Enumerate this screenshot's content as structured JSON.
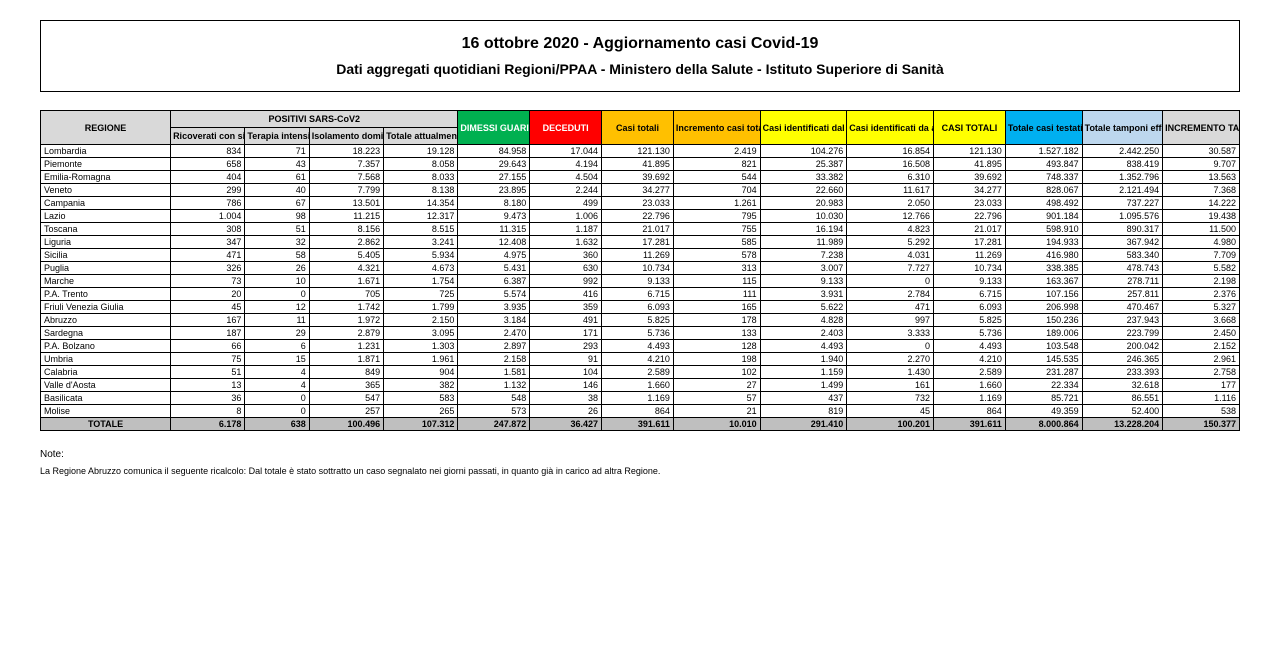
{
  "header": {
    "title": "16 ottobre 2020 - Aggiornamento casi Covid-19",
    "subtitle": "Dati aggregati quotidiani Regioni/PPAA - Ministero della Salute - Istituto Superiore di Sanità"
  },
  "table": {
    "group_header": "POSITIVI SARS-CoV2",
    "columns": [
      "REGIONE",
      "Ricoverati con sintomi",
      "Terapia intensiva",
      "Isolamento domiciliare",
      "Totale attualmente positivi",
      "DIMESSI GUARITI",
      "DECEDUTI",
      "Casi totali",
      "Incremento casi totali (rispetto al giorno precedente)",
      "Casi identificati dal sospetto diagnostico",
      "Casi identificati da attività di screening",
      "CASI TOTALI",
      "Totale casi testati",
      "Totale tamponi effettuati",
      "INCREMENTO TAMPONI"
    ],
    "rows": [
      [
        "Lombardia",
        "834",
        "71",
        "18.223",
        "19.128",
        "84.958",
        "17.044",
        "121.130",
        "2.419",
        "104.276",
        "16.854",
        "121.130",
        "1.527.182",
        "2.442.250",
        "30.587"
      ],
      [
        "Piemonte",
        "658",
        "43",
        "7.357",
        "8.058",
        "29.643",
        "4.194",
        "41.895",
        "821",
        "25.387",
        "16.508",
        "41.895",
        "493.847",
        "838.419",
        "9.707"
      ],
      [
        "Emilia-Romagna",
        "404",
        "61",
        "7.568",
        "8.033",
        "27.155",
        "4.504",
        "39.692",
        "544",
        "33.382",
        "6.310",
        "39.692",
        "748.337",
        "1.352.796",
        "13.563"
      ],
      [
        "Veneto",
        "299",
        "40",
        "7.799",
        "8.138",
        "23.895",
        "2.244",
        "34.277",
        "704",
        "22.660",
        "11.617",
        "34.277",
        "828.067",
        "2.121.494",
        "7.368"
      ],
      [
        "Campania",
        "786",
        "67",
        "13.501",
        "14.354",
        "8.180",
        "499",
        "23.033",
        "1.261",
        "20.983",
        "2.050",
        "23.033",
        "498.492",
        "737.227",
        "14.222"
      ],
      [
        "Lazio",
        "1.004",
        "98",
        "11.215",
        "12.317",
        "9.473",
        "1.006",
        "22.796",
        "795",
        "10.030",
        "12.766",
        "22.796",
        "901.184",
        "1.095.576",
        "19.438"
      ],
      [
        "Toscana",
        "308",
        "51",
        "8.156",
        "8.515",
        "11.315",
        "1.187",
        "21.017",
        "755",
        "16.194",
        "4.823",
        "21.017",
        "598.910",
        "890.317",
        "11.500"
      ],
      [
        "Liguria",
        "347",
        "32",
        "2.862",
        "3.241",
        "12.408",
        "1.632",
        "17.281",
        "585",
        "11.989",
        "5.292",
        "17.281",
        "194.933",
        "367.942",
        "4.980"
      ],
      [
        "Sicilia",
        "471",
        "58",
        "5.405",
        "5.934",
        "4.975",
        "360",
        "11.269",
        "578",
        "7.238",
        "4.031",
        "11.269",
        "416.980",
        "583.340",
        "7.709"
      ],
      [
        "Puglia",
        "326",
        "26",
        "4.321",
        "4.673",
        "5.431",
        "630",
        "10.734",
        "313",
        "3.007",
        "7.727",
        "10.734",
        "338.385",
        "478.743",
        "5.582"
      ],
      [
        "Marche",
        "73",
        "10",
        "1.671",
        "1.754",
        "6.387",
        "992",
        "9.133",
        "115",
        "9.133",
        "0",
        "9.133",
        "163.367",
        "278.711",
        "2.198"
      ],
      [
        "P.A. Trento",
        "20",
        "0",
        "705",
        "725",
        "5.574",
        "416",
        "6.715",
        "111",
        "3.931",
        "2.784",
        "6.715",
        "107.156",
        "257.811",
        "2.376"
      ],
      [
        "Friuli Venezia Giulia",
        "45",
        "12",
        "1.742",
        "1.799",
        "3.935",
        "359",
        "6.093",
        "165",
        "5.622",
        "471",
        "6.093",
        "206.998",
        "470.467",
        "5.327"
      ],
      [
        "Abruzzo",
        "167",
        "11",
        "1.972",
        "2.150",
        "3.184",
        "491",
        "5.825",
        "178",
        "4.828",
        "997",
        "5.825",
        "150.236",
        "237.943",
        "3.668"
      ],
      [
        "Sardegna",
        "187",
        "29",
        "2.879",
        "3.095",
        "2.470",
        "171",
        "5.736",
        "133",
        "2.403",
        "3.333",
        "5.736",
        "189.006",
        "223.799",
        "2.450"
      ],
      [
        "P.A. Bolzano",
        "66",
        "6",
        "1.231",
        "1.303",
        "2.897",
        "293",
        "4.493",
        "128",
        "4.493",
        "0",
        "4.493",
        "103.548",
        "200.042",
        "2.152"
      ],
      [
        "Umbria",
        "75",
        "15",
        "1.871",
        "1.961",
        "2.158",
        "91",
        "4.210",
        "198",
        "1.940",
        "2.270",
        "4.210",
        "145.535",
        "246.365",
        "2.961"
      ],
      [
        "Calabria",
        "51",
        "4",
        "849",
        "904",
        "1.581",
        "104",
        "2.589",
        "102",
        "1.159",
        "1.430",
        "2.589",
        "231.287",
        "233.393",
        "2.758"
      ],
      [
        "Valle d'Aosta",
        "13",
        "4",
        "365",
        "382",
        "1.132",
        "146",
        "1.660",
        "27",
        "1.499",
        "161",
        "1.660",
        "22.334",
        "32.618",
        "177"
      ],
      [
        "Basilicata",
        "36",
        "0",
        "547",
        "583",
        "548",
        "38",
        "1.169",
        "57",
        "437",
        "732",
        "1.169",
        "85.721",
        "86.551",
        "1.116"
      ],
      [
        "Molise",
        "8",
        "0",
        "257",
        "265",
        "573",
        "26",
        "864",
        "21",
        "819",
        "45",
        "864",
        "49.359",
        "52.400",
        "538"
      ]
    ],
    "totals_label": "TOTALE",
    "totals": [
      "6.178",
      "638",
      "100.496",
      "107.312",
      "247.872",
      "36.427",
      "391.611",
      "10.010",
      "291.410",
      "100.201",
      "391.611",
      "8.000.864",
      "13.228.204",
      "150.377"
    ],
    "col_classes": [
      "region",
      "",
      "",
      "",
      "",
      "",
      "",
      "",
      "",
      "",
      "",
      "",
      "",
      "",
      ""
    ],
    "header_classes": [
      "hdr-gray",
      "hdr-gray",
      "hdr-gray",
      "hdr-gray",
      "hdr-gray",
      "hdr-green",
      "hdr-red",
      "hdr-orange",
      "hdr-orange",
      "hdr-yellow",
      "hdr-yellow",
      "hdr-yellow",
      "hdr-blue",
      "hdr-lblue",
      "hdr-gray"
    ],
    "total_classes": [
      "tot-gray",
      "tot-gray",
      "tot-gray",
      "tot-gray",
      "tot-gray",
      "tot-green",
      "tot-red",
      "tot-orange",
      "tot-orange",
      "tot-yellow",
      "tot-yellow",
      "tot-yellow",
      "tot-blue",
      "tot-lblue",
      "tot-gray"
    ],
    "col_widths": [
      "10.5%",
      "6%",
      "5.2%",
      "6%",
      "6%",
      "5.8%",
      "5.8%",
      "5.8%",
      "7%",
      "7%",
      "7%",
      "5.8%",
      "6.2%",
      "6.5%",
      "6.2%"
    ]
  },
  "note": {
    "label": "Note:",
    "body": "La Regione Abruzzo comunica il seguente ricalcolo: Dal totale è stato sottratto un caso segnalato nei giorni passati, in quanto già in carico ad altra Regione."
  }
}
